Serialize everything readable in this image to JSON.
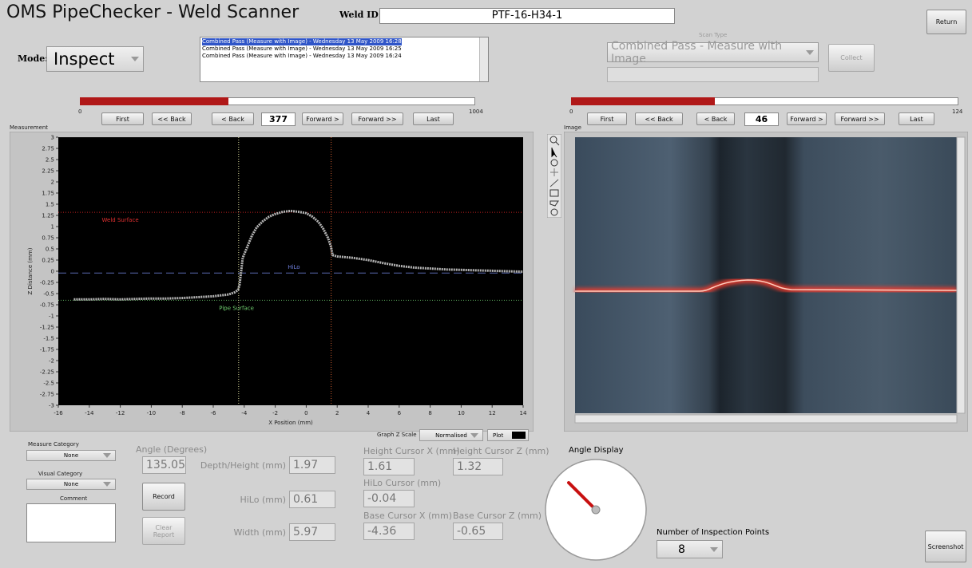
{
  "header": {
    "title": "OMS PipeChecker - Weld Scanner",
    "weld_id_label": "Weld ID:",
    "weld_id": "PTF-16-H34-1",
    "return_button": "Return"
  },
  "mode": {
    "label": "Mode:",
    "value": "Inspect"
  },
  "scan_list": [
    "Combined Pass (Measure with Image) - Wednesday 13 May 2009 16:28",
    "Combined Pass (Measure with Image) - Wednesday 13 May 2009 16:25",
    "Combined Pass (Measure with Image) - Wednesday 13 May 2009 16:24"
  ],
  "scan_type": {
    "label": "Scan Type",
    "value": "Combined Pass - Measure with Image",
    "collect_button": "Collect"
  },
  "measurement_nav": {
    "min": 0,
    "max": 1004,
    "current": 377,
    "buttons": [
      "First",
      "<< Back",
      "< Back",
      "Forward >",
      "Forward >>",
      "Last"
    ]
  },
  "image_nav": {
    "min": 0,
    "max": 124,
    "current": 46,
    "buttons": [
      "First",
      "<< Back",
      "< Back",
      "Forward >",
      "Forward >>",
      "Last"
    ]
  },
  "chart_data": {
    "type": "scatter",
    "label": "Measurement",
    "x_label": "X Position (mm)",
    "y_label": "Z Distance (mm)",
    "xlim": [
      -16,
      14
    ],
    "xticks": [
      -16,
      -14,
      -12,
      -10,
      -8,
      -6,
      -4,
      -2,
      0,
      2,
      4,
      6,
      8,
      10,
      12,
      14
    ],
    "ylim": [
      -3,
      3
    ],
    "yticks": [
      -3,
      -2.75,
      -2.5,
      -2.25,
      -2,
      -1.75,
      -1.5,
      -1.25,
      -1,
      -0.75,
      -0.5,
      -0.25,
      0,
      0.25,
      0.5,
      0.75,
      1,
      1.25,
      1.5,
      1.75,
      2,
      2.25,
      2.5,
      2.75,
      3
    ],
    "color": "#b4b4b4",
    "x": [
      -15,
      -14,
      -13,
      -12,
      -11,
      -10,
      -9,
      -8,
      -7,
      -6,
      -5,
      -4.6,
      -4.4,
      -4.3,
      -4.1,
      -3.8,
      -3.5,
      -3.2,
      -2.8,
      -2.4,
      -2,
      -1.5,
      -1,
      -0.5,
      0,
      0.4,
      0.8,
      1.1,
      1.4,
      1.6,
      1.7,
      2,
      3,
      4,
      5,
      6,
      7,
      8,
      9,
      10,
      11,
      12,
      13,
      14
    ],
    "y": [
      -0.63,
      -0.63,
      -0.62,
      -0.63,
      -0.62,
      -0.61,
      -0.61,
      -0.6,
      -0.58,
      -0.56,
      -0.52,
      -0.47,
      -0.42,
      -0.3,
      0.3,
      0.55,
      0.8,
      0.98,
      1.12,
      1.22,
      1.28,
      1.33,
      1.35,
      1.33,
      1.3,
      1.22,
      1.1,
      0.95,
      0.75,
      0.55,
      0.36,
      0.33,
      0.3,
      0.25,
      0.18,
      0.12,
      0.08,
      0.06,
      0.04,
      0.03,
      0.02,
      0.01,
      0,
      -0.01
    ],
    "annotations": [
      "Weld Surface",
      "HiLo",
      "Pipe Surface"
    ]
  },
  "image_panel": {
    "label": "Image"
  },
  "graph_controls": {
    "z_scale_label": "Graph Z Scale",
    "z_scale": "Normalised",
    "plot_label": "Plot"
  },
  "categories": {
    "measure_label": "Measure Category",
    "measure_value": "None",
    "visual_label": "Visual Category",
    "visual_value": "None",
    "comment_label": "Comment"
  },
  "results": {
    "angle_label": "Angle (Degrees)",
    "angle": 135.05,
    "depth_label": "Depth/Height (mm)",
    "depth": 1.97,
    "hilo_label": "HiLo (mm)",
    "hilo": 0.61,
    "width_label": "Width (mm)",
    "width": 5.97,
    "height_cursor_x_label": "Height Cursor X (mm)",
    "height_cursor_x": 1.61,
    "height_cursor_z_label": "Height Cursor Z (mm)",
    "height_cursor_z": 1.32,
    "hilo_cursor_label": "HiLo Cursor (mm)",
    "hilo_cursor": -0.04,
    "base_cursor_x_label": "Base Cursor X (mm)",
    "base_cursor_x": -4.36,
    "base_cursor_z_label": "Base Cursor Z (mm)",
    "base_cursor_z": -0.65
  },
  "angle_display": {
    "label": "Angle Display"
  },
  "inspection_points": {
    "label": "Number of Inspection Points",
    "value": 8
  },
  "buttons": {
    "record": "Record",
    "clear_report": "Clear Report",
    "screenshot": "Screenshot"
  }
}
